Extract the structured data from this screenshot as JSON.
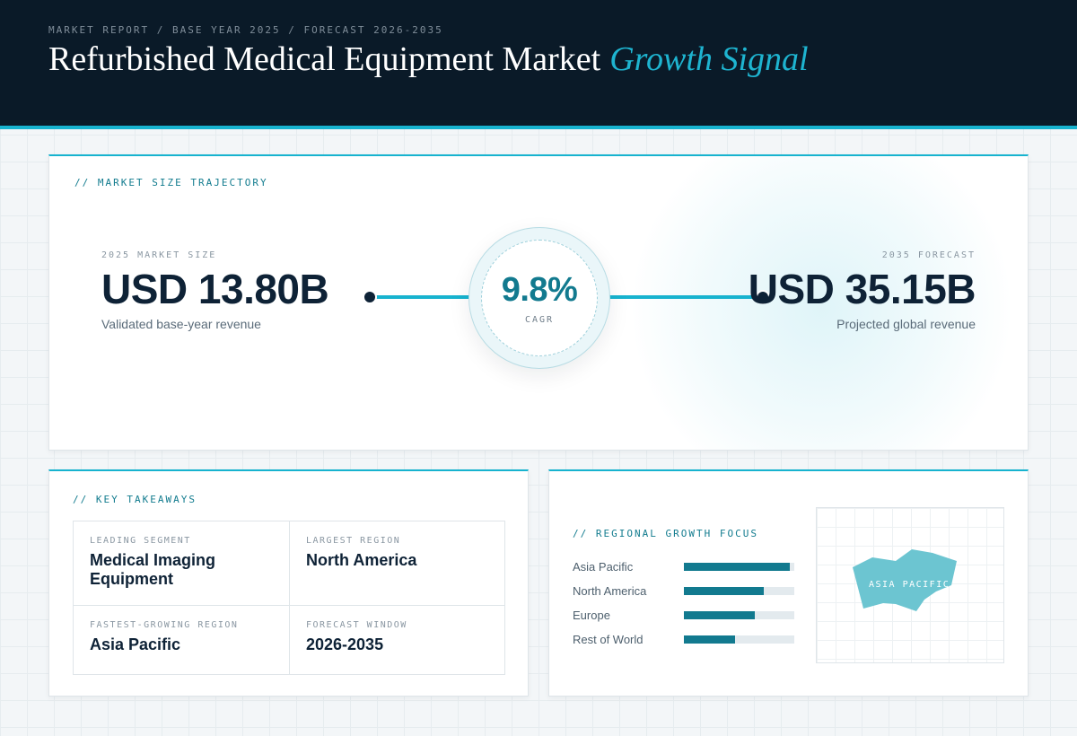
{
  "header": {
    "eyebrow": "MARKET REPORT / BASE YEAR 2025 / FORECAST 2026-2035",
    "title": "Refurbished Medical Equipment Market",
    "title_accent": "Growth Signal"
  },
  "trajectory": {
    "label": "// MARKET SIZE TRAJECTORY",
    "base": {
      "kicker": "2025 MARKET SIZE",
      "value": "USD 13.80B",
      "desc": "Validated base-year revenue"
    },
    "forecast": {
      "kicker": "2035 FORECAST",
      "value": "USD 35.15B",
      "desc": "Projected global revenue"
    },
    "cagr": {
      "value": "9.8%",
      "label": "CAGR"
    }
  },
  "takeaways": {
    "label": "// KEY TAKEAWAYS",
    "items": [
      {
        "kicker": "LEADING SEGMENT",
        "value": "Medical Imaging Equipment"
      },
      {
        "kicker": "LARGEST REGION",
        "value": "North America"
      },
      {
        "kicker": "FASTEST-GROWING REGION",
        "value": "Asia Pacific"
      },
      {
        "kicker": "FORECAST WINDOW",
        "value": "2026-2035"
      }
    ]
  },
  "regional": {
    "label": "// REGIONAL GROWTH FOCUS",
    "bars": [
      {
        "name": "Asia Pacific",
        "share": 0.96
      },
      {
        "name": "North America",
        "share": 0.72
      },
      {
        "name": "Europe",
        "share": 0.64
      },
      {
        "name": "Rest of World",
        "share": 0.46
      }
    ],
    "map_label": "ASIA PACIFIC",
    "map_color": "#6cc5d1"
  }
}
